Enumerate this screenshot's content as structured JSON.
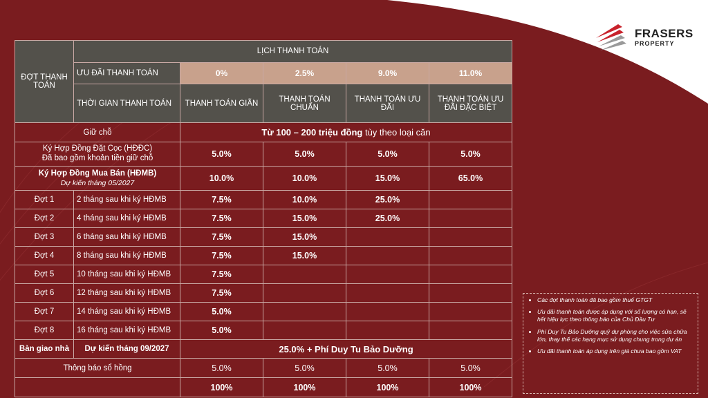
{
  "logo": {
    "name": "FRASERS",
    "sub": "PROPERTY"
  },
  "header": {
    "dot_label": "ĐỢT THANH TOÁN",
    "schedule_title": "LỊCH THANH TOÁN",
    "discount_label": "ƯU ĐÃI THANH TOÁN",
    "discounts": [
      "0%",
      "2.5%",
      "9.0%",
      "11.0%"
    ],
    "time_label": "THỜI GIAN THANH TOÁN",
    "plans": [
      "THANH TOÁN GIÃN",
      "THANH TOÁN CHUẨN",
      "THANH TOÁN ƯU ĐÃI",
      "THANH TOÁN ƯU ĐÃI ĐẶC BIỆT"
    ]
  },
  "reserve": {
    "label": "Giữ chỗ",
    "value_bold": "Từ 100 – 200 triệu đồng",
    "value_rest": " tùy theo loại căn"
  },
  "deposit": {
    "label1": "Ký Hợp Đồng Đặt Cọc (HĐĐC)",
    "label2": "Đã bao gồm khoản tiền giữ chỗ",
    "values": [
      "5.0%",
      "5.0%",
      "5.0%",
      "5.0%"
    ]
  },
  "contract": {
    "label1": "Ký Hợp Đồng Mua Bán (HĐMB)",
    "label2": "Dự kiến tháng 05/2027",
    "values": [
      "10.0%",
      "10.0%",
      "15.0%",
      "65.0%"
    ]
  },
  "installments": [
    {
      "dot": "Đợt 1",
      "time": "2 tháng sau khi ký HĐMB",
      "values": [
        "7.5%",
        "10.0%",
        "25.0%",
        ""
      ]
    },
    {
      "dot": "Đợt 2",
      "time": "4 tháng sau khi ký HĐMB",
      "values": [
        "7.5%",
        "15.0%",
        "25.0%",
        ""
      ]
    },
    {
      "dot": "Đợt 3",
      "time": "6 tháng sau khi ký HĐMB",
      "values": [
        "7.5%",
        "15.0%",
        "",
        ""
      ]
    },
    {
      "dot": "Đợt 4",
      "time": "8 tháng sau khi ký HĐMB",
      "values": [
        "7.5%",
        "15.0%",
        "",
        ""
      ]
    },
    {
      "dot": "Đợt 5",
      "time": "10 tháng sau khi ký HĐMB",
      "values": [
        "7.5%",
        "",
        "",
        ""
      ]
    },
    {
      "dot": "Đợt 6",
      "time": "12 tháng sau khi ký HĐMB",
      "values": [
        "7.5%",
        "",
        "",
        ""
      ]
    },
    {
      "dot": "Đợt 7",
      "time": "14 tháng sau khi ký HĐMB",
      "values": [
        "5.0%",
        "",
        "",
        ""
      ]
    },
    {
      "dot": "Đợt 8",
      "time": "16 tháng sau khi ký HĐMB",
      "values": [
        "5.0%",
        "",
        "",
        ""
      ]
    }
  ],
  "handover": {
    "label": "Bàn giao nhà",
    "time": "Dự kiến tháng 09/2027",
    "value": "25.0% + Phí Duy Tu Bảo Dưỡng"
  },
  "pink_book": {
    "label": "Thông báo sổ hồng",
    "values": [
      "5.0%",
      "5.0%",
      "5.0%",
      "5.0%"
    ]
  },
  "total": {
    "values": [
      "100%",
      "100%",
      "100%",
      "100%"
    ]
  },
  "notes": [
    "Các đợt thanh toán đã bao gồm thuế GTGT",
    "Ưu đãi thanh toán được áp dụng với số lượng có hạn, sẽ hết hiệu lực theo thông báo của Chủ Đầu Tư",
    "Phí Duy Tu Bảo Dưỡng quỹ dự phòng cho việc sửa chữa lớn, thay thế các hạng mục sử dụng chung trong dự án",
    "Ưu đãi thanh toán áp dụng trên giá chưa bao gồm VAT"
  ],
  "colors": {
    "background": "#7a1c1f",
    "header_gray": "#53514b",
    "discount_tan": "#c8a18c"
  }
}
